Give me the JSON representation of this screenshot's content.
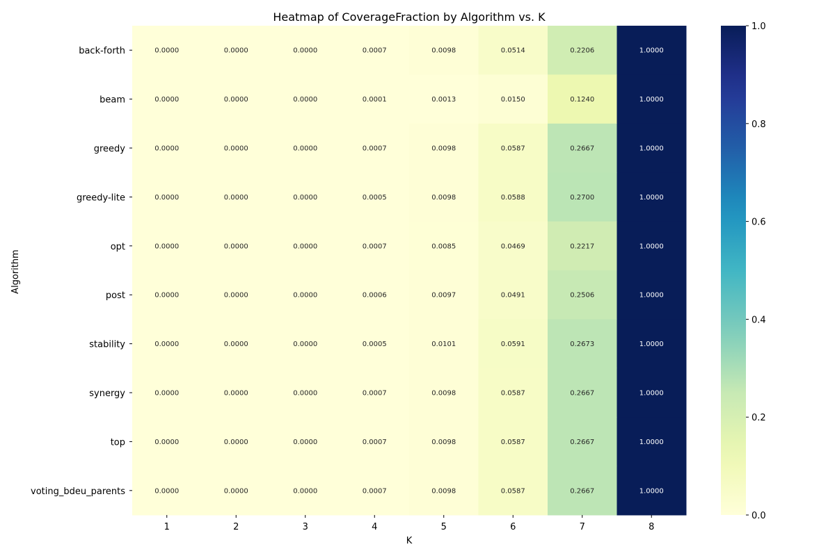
{
  "chart_data": {
    "type": "heatmap",
    "title": "Heatmap of CoverageFraction by Algorithm vs. K",
    "xlabel": "K",
    "ylabel": "Algorithm",
    "x": [
      "1",
      "2",
      "3",
      "4",
      "5",
      "6",
      "7",
      "8"
    ],
    "y": [
      "back-forth",
      "beam",
      "greedy",
      "greedy-lite",
      "opt",
      "post",
      "stability",
      "synergy",
      "top",
      "voting_bdeu_parents"
    ],
    "values": [
      [
        0.0,
        0.0,
        0.0,
        0.0007,
        0.0098,
        0.0514,
        0.2206,
        1.0
      ],
      [
        0.0,
        0.0,
        0.0,
        0.0001,
        0.0013,
        0.015,
        0.124,
        1.0
      ],
      [
        0.0,
        0.0,
        0.0,
        0.0007,
        0.0098,
        0.0587,
        0.2667,
        1.0
      ],
      [
        0.0,
        0.0,
        0.0,
        0.0005,
        0.0098,
        0.0588,
        0.27,
        1.0
      ],
      [
        0.0,
        0.0,
        0.0,
        0.0007,
        0.0085,
        0.0469,
        0.2217,
        1.0
      ],
      [
        0.0,
        0.0,
        0.0,
        0.0006,
        0.0097,
        0.0491,
        0.2506,
        1.0
      ],
      [
        0.0,
        0.0,
        0.0,
        0.0005,
        0.0101,
        0.0591,
        0.2673,
        1.0
      ],
      [
        0.0,
        0.0,
        0.0,
        0.0007,
        0.0098,
        0.0587,
        0.2667,
        1.0
      ],
      [
        0.0,
        0.0,
        0.0,
        0.0007,
        0.0098,
        0.0587,
        0.2667,
        1.0
      ],
      [
        0.0,
        0.0,
        0.0,
        0.0007,
        0.0098,
        0.0587,
        0.2667,
        1.0
      ]
    ],
    "colormap": "YlGnBu",
    "colorbar": {
      "range": [
        0.0,
        1.0
      ],
      "ticks": [
        "0.0",
        "0.2",
        "0.4",
        "0.6",
        "0.8",
        "1.0"
      ]
    },
    "annotation_format": "4 decimals",
    "grid": false
  }
}
